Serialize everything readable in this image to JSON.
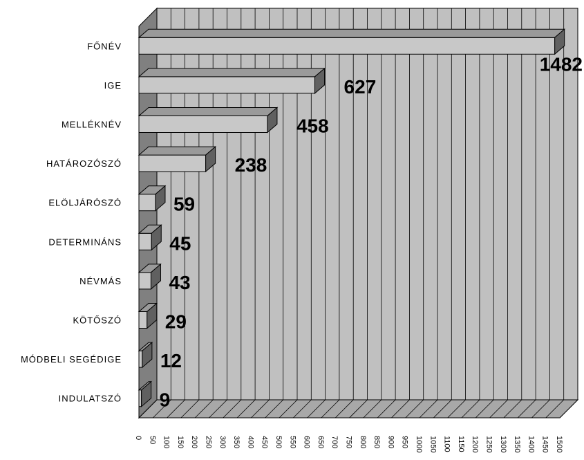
{
  "chart_data": {
    "type": "bar",
    "orientation": "horizontal",
    "three_d": true,
    "categories": [
      "FŐNÉV",
      "IGE",
      "MELLÉKNÉV",
      "HATÁROZÓSZÓ",
      "ELÖLJÁRÓSZÓ",
      "DETERMINÁNS",
      "NÉVMÁS",
      "KÖTŐSZÓ",
      "MÓDBELI SEGÉDIGE",
      "INDULATSZÓ"
    ],
    "values": [
      1482,
      627,
      458,
      238,
      59,
      45,
      43,
      29,
      12,
      9
    ],
    "value_labels": [
      "1482",
      "627",
      "458",
      "238",
      "59",
      "45",
      "43",
      "29",
      "12",
      "9"
    ],
    "xlim": [
      0,
      1500
    ],
    "x_ticks": [
      "0",
      "50",
      "100",
      "150",
      "200",
      "250",
      "300",
      "350",
      "400",
      "450",
      "500",
      "550",
      "600",
      "650",
      "700",
      "750",
      "800",
      "850",
      "900",
      "950",
      "1000",
      "1050",
      "1100",
      "1150",
      "1200",
      "1250",
      "1300",
      "1350",
      "1400",
      "1450",
      "1500"
    ],
    "grid": true,
    "legend": "none",
    "colors": {
      "wall": "#c0c0c0",
      "side_wall": "#808080",
      "floor": "#a8a8a8",
      "gridline": "#000000",
      "bar_front": "#c8c8c8",
      "bar_top": "#9a9a9a",
      "bar_side": "#606060"
    }
  }
}
